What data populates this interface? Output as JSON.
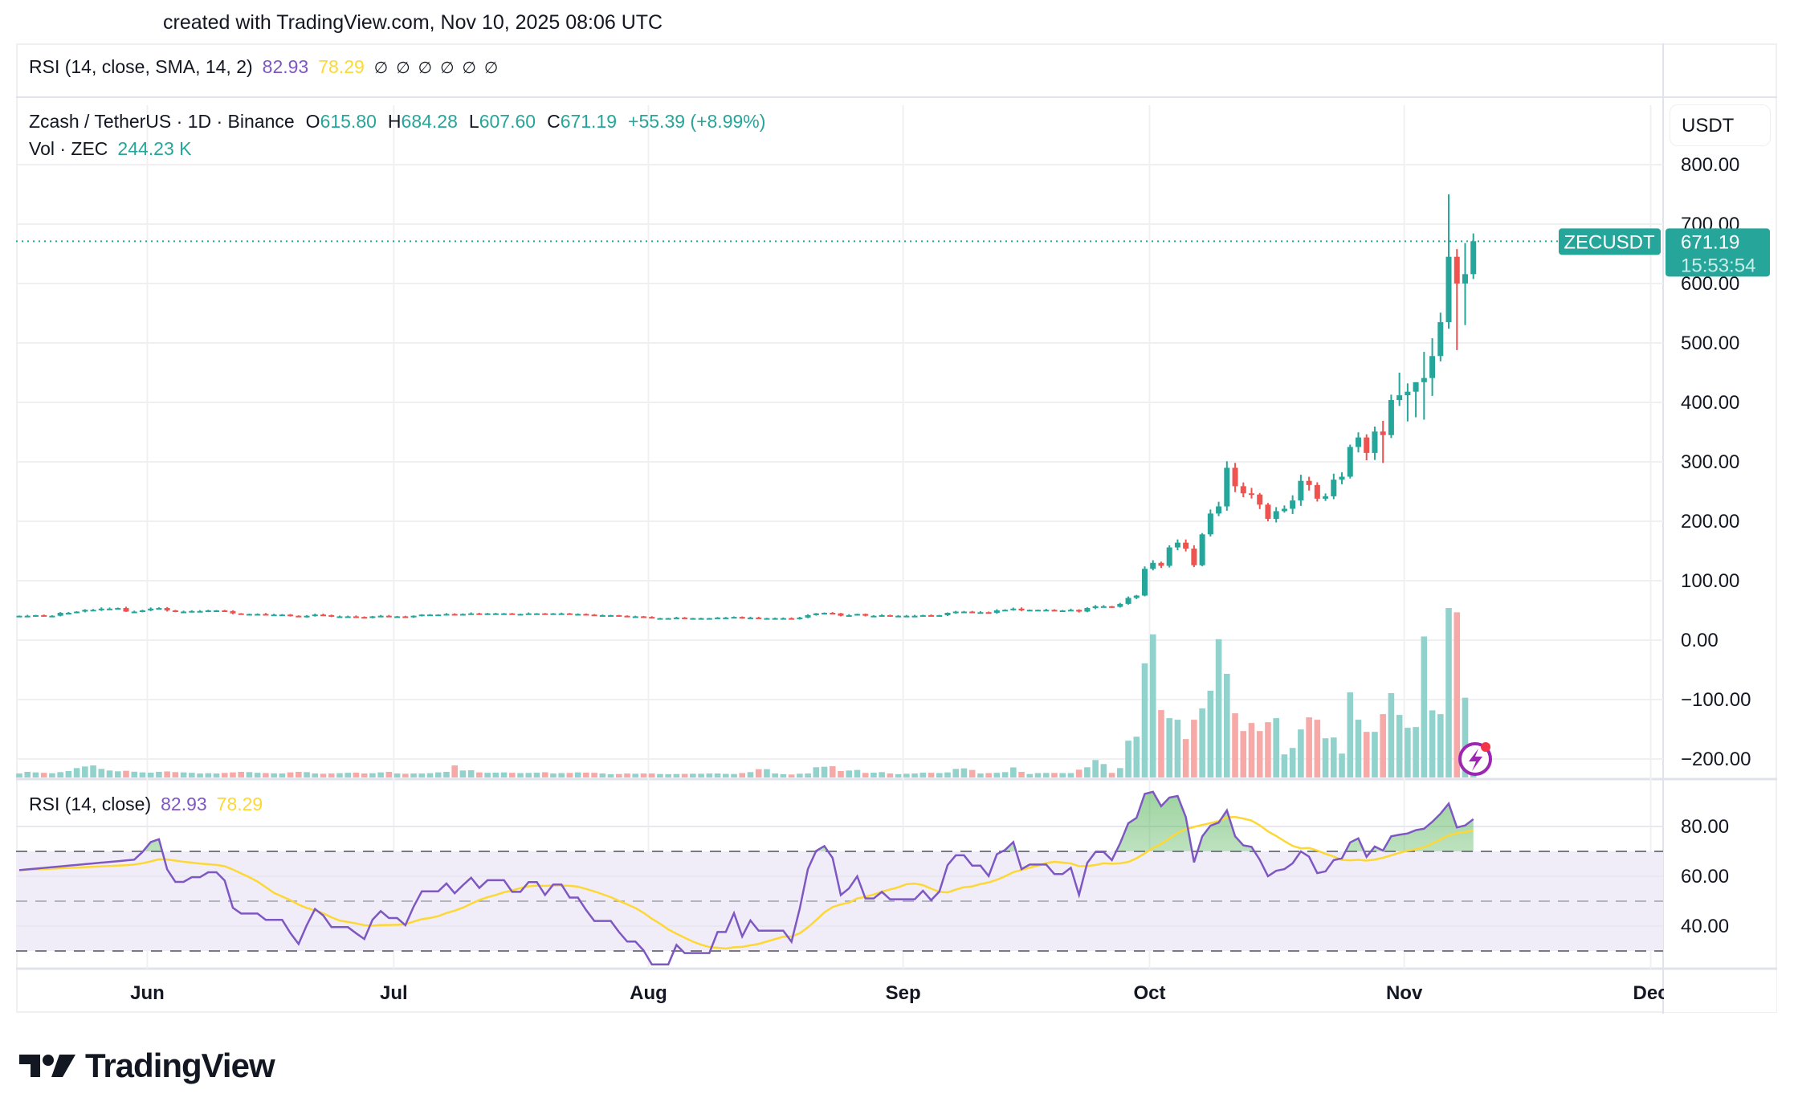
{
  "caption": "created with TradingView.com, Nov 10, 2025 08:06 UTC",
  "top_legend": {
    "title": "RSI (14, close, SMA, 14, 2)",
    "rsi": "82.93",
    "sma": "78.29",
    "nan_values": [
      "∅",
      "∅",
      "∅",
      "∅",
      "∅",
      "∅"
    ]
  },
  "main_legend": {
    "symbol": "Zcash / TetherUS · 1D · Binance",
    "o_label": "O",
    "o": "615.80",
    "h_label": "H",
    "h": "684.28",
    "l_label": "L",
    "l": "607.60",
    "c_label": "C",
    "c": "671.19",
    "change": "+55.39 (+8.99%)",
    "vol_label": "Vol · ZEC",
    "vol": "244.23 K"
  },
  "rsi_legend": {
    "title": "RSI (14, close)",
    "rsi": "82.93",
    "sma": "78.29"
  },
  "currency_button": "USDT",
  "price_tag": {
    "symbol": "ZECUSDT",
    "price": "671.19",
    "countdown": "15:53:54"
  },
  "logo_text": "TradingView",
  "colors": {
    "up": "#26a69a",
    "down": "#ef5350",
    "up_vol": "#92d2cc",
    "down_vol": "#f7a9a7",
    "rsi": "#7e57c2",
    "sma": "#fdd835",
    "band": "#f0edf8"
  },
  "chart_data": {
    "type": "candlestick",
    "symbol": "ZECUSDT",
    "interval": "1D",
    "first_date": "2025-05-17",
    "last_date": "2025-11-10",
    "price_axis": {
      "ticks": [
        "800.00",
        "700.00",
        "600.00",
        "500.00",
        "400.00",
        "300.00",
        "200.00",
        "100.00",
        "0.00",
        "−100.00",
        "−200.00"
      ],
      "values": [
        800,
        700,
        600,
        500,
        400,
        300,
        200,
        100,
        0,
        -100,
        -200
      ]
    },
    "rsi_axis": {
      "ticks": [
        "80.00",
        "60.00",
        "40.00"
      ],
      "values": [
        80,
        60,
        40
      ],
      "bands": [
        70,
        50,
        30
      ]
    },
    "time_axis": [
      {
        "label": "Jun",
        "day_index": 15
      },
      {
        "label": "Jul",
        "day_index": 45
      },
      {
        "label": "Aug",
        "day_index": 76
      },
      {
        "label": "Sep",
        "day_index": 107
      },
      {
        "label": "Oct",
        "day_index": 137
      },
      {
        "label": "Nov",
        "day_index": 168
      },
      {
        "label": "Dec",
        "day_index": 198
      }
    ],
    "closes": [
      41,
      41,
      42,
      41,
      41,
      46,
      46,
      48,
      51,
      51,
      53,
      53,
      54,
      48,
      48,
      50,
      53,
      54,
      50,
      48,
      48,
      49,
      49,
      50,
      50,
      49,
      45,
      44,
      44,
      44,
      43,
      43,
      43,
      41,
      39,
      41,
      43,
      42,
      40,
      40,
      40,
      39,
      38,
      40,
      41,
      40,
      40,
      39,
      41,
      43,
      43,
      43,
      44,
      43,
      44,
      45,
      44,
      45,
      45,
      45,
      44,
      44,
      45,
      45,
      44,
      45,
      45,
      44,
      44,
      43,
      42,
      42,
      42,
      41,
      40,
      40,
      39,
      37,
      37,
      37,
      38,
      37,
      37,
      37,
      37,
      38,
      38,
      39,
      37,
      38,
      37,
      37,
      37,
      37,
      36,
      38,
      42,
      45,
      46,
      45,
      41,
      42,
      44,
      41,
      41,
      42,
      41,
      41,
      41,
      41,
      42,
      41,
      42,
      46,
      48,
      48,
      47,
      47,
      46,
      50,
      51,
      53,
      50,
      51,
      51,
      51,
      50,
      50,
      51,
      48,
      54,
      57,
      57,
      56,
      61,
      71,
      75,
      120,
      130,
      125,
      156,
      164,
      154,
      126,
      178,
      213,
      225,
      290,
      259,
      247,
      245,
      228,
      204,
      217,
      221,
      235,
      268,
      261,
      238,
      242,
      270,
      275,
      325,
      341,
      315,
      351,
      345,
      404,
      412,
      418,
      434,
      441,
      478,
      535,
      645,
      600,
      615.8,
      671.19
    ],
    "recent_highs": [
      369,
      413,
      450,
      432,
      434,
      485,
      508,
      551,
      750,
      658,
      668,
      684.28
    ],
    "recent_lows": [
      298,
      340,
      394,
      368,
      375,
      371,
      411,
      469,
      524,
      488,
      530,
      607.6
    ],
    "volumes_k": [
      300,
      420,
      380,
      350,
      320,
      400,
      480,
      700,
      820,
      900,
      640,
      520,
      460,
      500,
      430,
      380,
      360,
      420,
      450,
      400,
      380,
      350,
      300,
      320,
      300,
      340,
      380,
      420,
      400,
      350,
      330,
      310,
      300,
      380,
      420,
      400,
      300,
      280,
      300,
      320,
      350,
      360,
      300,
      320,
      380,
      420,
      300,
      280,
      300,
      300,
      320,
      380,
      420,
      900,
      520,
      540,
      380,
      350,
      360,
      380,
      350,
      330,
      340,
      360,
      390,
      300,
      330,
      340,
      380,
      360,
      350,
      300,
      250,
      260,
      300,
      280,
      300,
      300,
      260,
      250,
      260,
      270,
      280,
      280,
      300,
      300,
      270,
      260,
      330,
      400,
      620,
      620,
      300,
      250,
      220,
      280,
      300,
      760,
      800,
      840,
      480,
      520,
      560,
      340,
      360,
      400,
      300,
      250,
      280,
      300,
      360,
      350,
      330,
      380,
      640,
      680,
      560,
      300,
      330,
      350,
      400,
      750,
      420,
      260,
      330,
      340,
      340,
      330,
      330,
      580,
      760,
      1300,
      1000,
      340,
      700,
      2740,
      3040,
      8500,
      10660,
      5020,
      4420,
      4300,
      2860,
      4300,
      5140,
      6460,
      10300,
      7720,
      4780,
      3460,
      4060,
      3460,
      4120,
      4420,
      1720,
      2200,
      3580,
      4480,
      4300,
      2920,
      2980,
      1780,
      6340,
      4300,
      3400,
      3400,
      4720,
      6280,
      4660,
      3700,
      3760,
      10500,
      5000,
      4720,
      12620,
      12300,
      5940,
      244.23
    ],
    "volume_unit": "K",
    "indicator": {
      "name": "RSI",
      "length": 14,
      "source": "close",
      "smoothing": "SMA",
      "smoothing_length": 14,
      "last_rsi": 82.93,
      "last_sma": 78.29
    }
  }
}
